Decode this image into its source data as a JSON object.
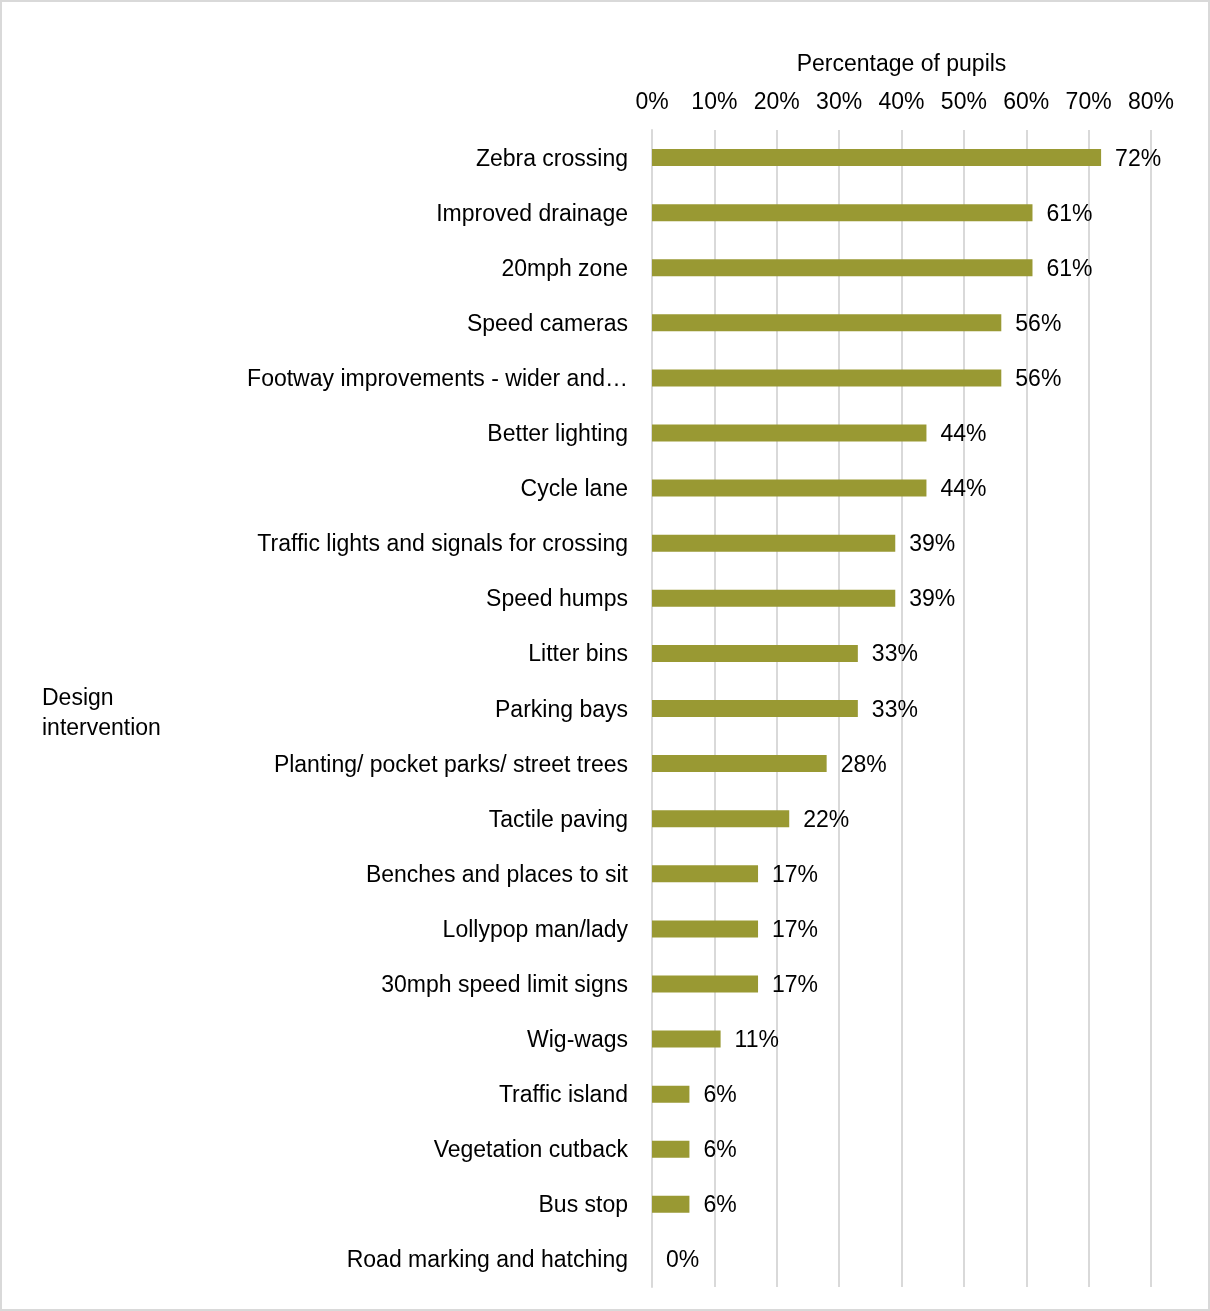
{
  "chart_data": {
    "type": "bar",
    "orientation": "horizontal",
    "xlabel": "Percentage of pupils",
    "ylabel": "Design intervention",
    "categories": [
      "Zebra crossing",
      "Improved drainage",
      "20mph zone",
      "Speed cameras",
      "Footway improvements - wider and…",
      "Better lighting",
      "Cycle lane",
      "Traffic lights and signals for crossing",
      "Speed humps",
      "Litter bins",
      "Parking bays",
      "Planting/ pocket parks/ street trees",
      "Tactile paving",
      "Benches and places to sit",
      "Lollypop man/lady",
      "30mph speed limit signs",
      "Wig-wags",
      "Traffic island",
      "Vegetation cutback",
      "Bus stop",
      "Road marking and hatching"
    ],
    "values": [
      72,
      61,
      61,
      56,
      56,
      44,
      44,
      39,
      39,
      33,
      33,
      28,
      22,
      17,
      17,
      17,
      11,
      6,
      6,
      6,
      0
    ],
    "value_labels": [
      "72%",
      "61%",
      "61%",
      "56%",
      "56%",
      "44%",
      "44%",
      "39%",
      "39%",
      "33%",
      "33%",
      "28%",
      "22%",
      "17%",
      "17%",
      "17%",
      "11%",
      "6%",
      "6%",
      "6%",
      "0%"
    ],
    "color": "#999933",
    "xlim": [
      0,
      80
    ],
    "xticks": [
      {
        "value": 0,
        "label": "0%"
      },
      {
        "value": 10,
        "label": "10%"
      },
      {
        "value": 20,
        "label": "20%"
      },
      {
        "value": 30,
        "label": "30%"
      },
      {
        "value": 40,
        "label": "40%"
      },
      {
        "value": 50,
        "label": "50%"
      },
      {
        "value": 60,
        "label": "60%"
      },
      {
        "value": 70,
        "label": "70%"
      },
      {
        "value": 80,
        "label": "80%"
      }
    ],
    "grid": "x"
  }
}
